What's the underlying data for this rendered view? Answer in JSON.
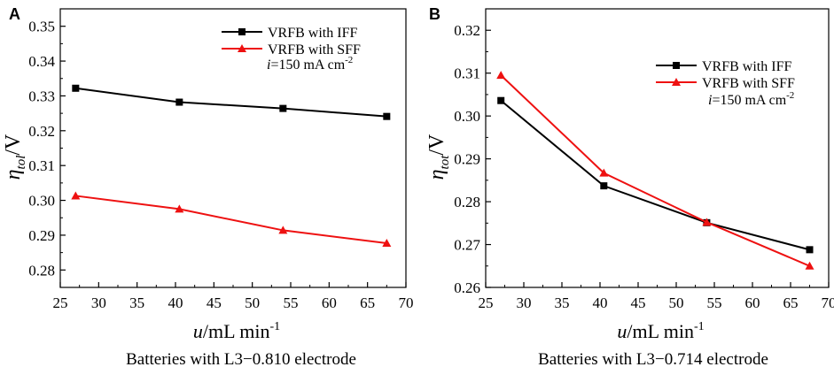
{
  "chart_data": [
    {
      "type": "line",
      "panel_label": "A",
      "ylabel_main": "η",
      "ylabel_sub": "tol",
      "ylabel_unit": "/V",
      "xlabel_main": "u",
      "xlabel_unit": "/mL min",
      "xlabel_sup": "-1",
      "caption": "Batteries with L3−0.810 electrode",
      "xlim": [
        25,
        70
      ],
      "ylim": [
        0.275,
        0.355
      ],
      "xticks": [
        25,
        30,
        35,
        40,
        45,
        50,
        55,
        60,
        65,
        70
      ],
      "yticks": [
        0.28,
        0.29,
        0.3,
        0.31,
        0.32,
        0.33,
        0.34,
        0.35
      ],
      "ytick_labels": [
        "0.28",
        "0.29",
        "0.30",
        "0.31",
        "0.32",
        "0.33",
        "0.34",
        "0.35"
      ],
      "legend_position": "top-right",
      "annotation_prefix": "i",
      "annotation_text": "=150 mA cm",
      "annotation_sup": "-2",
      "series": [
        {
          "name": "VRFB with IFF",
          "color": "#000000",
          "marker": "square",
          "x": [
            27,
            40.5,
            54,
            67.5
          ],
          "values": [
            0.3322,
            0.3282,
            0.3264,
            0.3241
          ]
        },
        {
          "name": "VRFB with SFF",
          "color": "#ee1111",
          "marker": "triangle",
          "x": [
            27,
            40.5,
            54,
            67.5
          ],
          "values": [
            0.3013,
            0.2975,
            0.2914,
            0.2877
          ]
        }
      ]
    },
    {
      "type": "line",
      "panel_label": "B",
      "ylabel_main": "η",
      "ylabel_sub": "tot",
      "ylabel_unit": "/V",
      "xlabel_main": "u",
      "xlabel_unit": "/mL min",
      "xlabel_sup": "-1",
      "caption": "Batteries with L3−0.714 electrode",
      "xlim": [
        25,
        70
      ],
      "ylim": [
        0.26,
        0.325
      ],
      "xticks": [
        25,
        30,
        35,
        40,
        45,
        50,
        55,
        60,
        65,
        70
      ],
      "yticks": [
        0.26,
        0.27,
        0.28,
        0.29,
        0.3,
        0.31,
        0.32
      ],
      "ytick_labels": [
        "0.26",
        "0.27",
        "0.28",
        "0.29",
        "0.30",
        "0.31",
        "0.32"
      ],
      "legend_position": "top-right",
      "annotation_prefix": "i",
      "annotation_text": "=150 mA cm",
      "annotation_sup": "-2",
      "series": [
        {
          "name": "VRFB with IFF",
          "color": "#000000",
          "marker": "square",
          "x": [
            27,
            40.5,
            54,
            67.5
          ],
          "values": [
            0.3036,
            0.2837,
            0.2751,
            0.2688
          ]
        },
        {
          "name": "VRFB with SFF",
          "color": "#ee1111",
          "marker": "triangle",
          "x": [
            27,
            40.5,
            54,
            67.5
          ],
          "values": [
            0.3095,
            0.2867,
            0.2752,
            0.265
          ]
        }
      ]
    }
  ]
}
